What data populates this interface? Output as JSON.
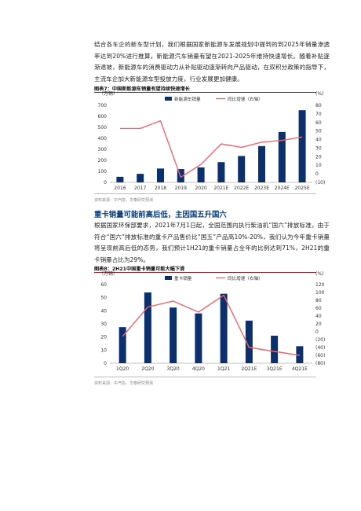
{
  "intro_paragraph": "结合各车企的新车型计划，我们根据国家新能源车发展规划中提到的到2025年销量渗透率达到20%进行推算，新能源汽车销量有望在2021-2025年维持快速增长。随着补贴逐渐退坡，新能源车的消费驱动力从补贴驱动逐渐转向产品驱动，在双积分政策的指导下，主流车企加大新能源车型投放力度，行业发展更加健康。",
  "section_heading": "重卡销量可能前高后低，主因国五升国六",
  "body_paragraph": "根据国家环保部要求，2021年7月1日起，全国范围内执行柴油机“国六”排放标准，由于符合“国六”排放标准的重卡产品售价比“国五”产品高10%-20%，我们认为今年重卡销量将呈现前高后低的态势，我们预计1H21的重卡销量占全年的比例达到71%，2H21的重卡销量占比为29%。",
  "chart_data": [
    {
      "type": "bar",
      "title": "图表7：中国新能源车销量有望持续快速增长",
      "source": "资料来源：中汽协，华泰研究预测",
      "categories": [
        "2016",
        "2017",
        "2018",
        "2019",
        "2020",
        "2021E",
        "2022E",
        "2023E",
        "2024E",
        "2025E"
      ],
      "series": [
        {
          "name": "新能源车销量",
          "axis": "left",
          "values": [
            51,
            78,
            126,
            121,
            136,
            184,
            240,
            330,
            458,
            656
          ]
        },
        {
          "name": "同比增速（右轴）",
          "axis": "right",
          "type": "line",
          "values": [
            53,
            53,
            62,
            -4,
            11,
            35,
            31,
            37,
            39,
            43
          ]
        }
      ],
      "left_axis": {
        "unit": "（万辆）",
        "ylim": [
          0,
          700
        ],
        "ticks": [
          0,
          100,
          200,
          300,
          400,
          500,
          600,
          700
        ]
      },
      "right_axis": {
        "unit": "(%)",
        "ylim": [
          -10,
          80
        ],
        "ticks": [
          -10,
          0,
          10,
          20,
          30,
          40,
          50,
          60,
          70,
          80
        ],
        "tick_labels": [
          "(10)",
          "0",
          "10",
          "20",
          "30",
          "40",
          "50",
          "60",
          "70",
          "80"
        ]
      },
      "colors": {
        "bar": "#0c2f6e",
        "line": "#f0646a"
      }
    },
    {
      "type": "bar",
      "title": "图表8：2H21中国重卡销量可能大幅下滑",
      "source": "资料来源：中汽协，华泰研究预测",
      "categories": [
        "1Q20",
        "2Q20",
        "3Q20",
        "4Q20",
        "1Q21",
        "2Q21E",
        "3Q21E",
        "4Q21E"
      ],
      "series": [
        {
          "name": "重卡销量",
          "axis": "left",
          "values": [
            27.5,
            54,
            42.5,
            38,
            53,
            32.5,
            21,
            13
          ]
        },
        {
          "name": "同比增速（右轴）",
          "axis": "right",
          "type": "line",
          "values": [
            -12,
            63,
            78,
            50,
            93,
            -40,
            -50,
            -60
          ]
        }
      ],
      "left_axis": {
        "unit": "（万辆）",
        "ylim": [
          0,
          60
        ],
        "ticks": [
          0,
          10,
          20,
          30,
          40,
          50,
          60
        ]
      },
      "right_axis": {
        "unit": "(%)",
        "ylim": [
          -80,
          120
        ],
        "ticks": [
          -80,
          -60,
          -40,
          -20,
          0,
          20,
          40,
          60,
          80,
          100,
          120
        ],
        "tick_labels": [
          "(80)",
          "(60)",
          "(40)",
          "(20)",
          "0",
          "20",
          "40",
          "60",
          "80",
          "100",
          "120"
        ]
      },
      "colors": {
        "bar": "#0c2f6e",
        "line": "#f0646a"
      }
    }
  ]
}
